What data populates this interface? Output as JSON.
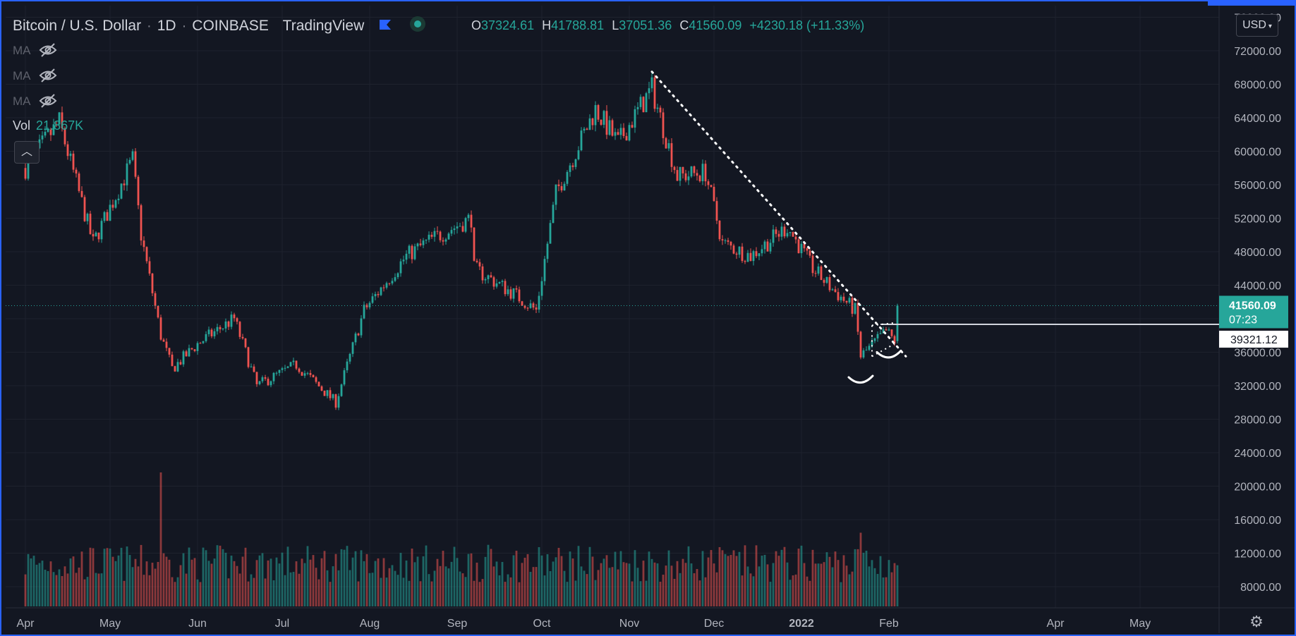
{
  "header": {
    "symbol": "Bitcoin / U.S. Dollar",
    "interval": "1D",
    "exchange": "COINBASE",
    "source": "TradingView",
    "ohlc": {
      "open_label": "O",
      "open": "37324.61",
      "high_label": "H",
      "high": "41788.81",
      "low_label": "L",
      "low": "37051.36",
      "close_label": "C",
      "close": "41560.09",
      "change": "+4230.18 (+11.33%)"
    }
  },
  "indicators": {
    "ma_labels": [
      "MA",
      "MA",
      "MA"
    ],
    "vol_label": "Vol",
    "vol_value": "21.867K"
  },
  "controls": {
    "currency": "USD",
    "collapse_icon": "chevron-up-icon",
    "settings_icon": "gear-icon"
  },
  "colors": {
    "up": "#26a69a",
    "down": "#ef5350",
    "background": "#131722",
    "grid": "#1e222d",
    "frame": "#2962ff"
  },
  "price_tags": {
    "last_price": "41560.09",
    "countdown": "07:23",
    "level_price": "39321.12"
  },
  "chart_data": {
    "type": "candlestick",
    "y_axis": {
      "range": [
        6000,
        76000
      ],
      "ticks": [
        8000,
        12000,
        16000,
        20000,
        24000,
        28000,
        32000,
        36000,
        40000,
        44000,
        48000,
        52000,
        56000,
        60000,
        64000,
        68000,
        72000
      ],
      "tick_labels": [
        "8000.00",
        "12000.00",
        "16000.00",
        "20000.00",
        "24000.00",
        "28000.00",
        "32000.00",
        "36000.00",
        "40000.00",
        "44000.00",
        "48000.00",
        "52000.00",
        "56000.00",
        "60000.00",
        "64000.00",
        "68000.00",
        "72000.00"
      ],
      "top_partial_label": "76000.00"
    },
    "x_axis": {
      "labels": [
        "Apr",
        "May",
        "Jun",
        "Jul",
        "Aug",
        "Sep",
        "Oct",
        "Nov",
        "Dec",
        "2022",
        "Feb",
        "Apr",
        "May"
      ]
    },
    "price_path": [
      {
        "date": "2021-04-01",
        "close": 58000
      },
      {
        "date": "2021-04-13",
        "close": 63500
      },
      {
        "date": "2021-04-25",
        "close": 49000
      },
      {
        "date": "2021-05-09",
        "close": 59000
      },
      {
        "date": "2021-05-12",
        "close": 50000
      },
      {
        "date": "2021-05-19",
        "close": 38000
      },
      {
        "date": "2021-05-23",
        "close": 34000
      },
      {
        "date": "2021-06-01",
        "close": 37000
      },
      {
        "date": "2021-06-14",
        "close": 40000
      },
      {
        "date": "2021-06-22",
        "close": 32000
      },
      {
        "date": "2021-07-06",
        "close": 34500
      },
      {
        "date": "2021-07-20",
        "close": 30000
      },
      {
        "date": "2021-07-30",
        "close": 41000
      },
      {
        "date": "2021-08-14",
        "close": 47500
      },
      {
        "date": "2021-08-23",
        "close": 49500
      },
      {
        "date": "2021-09-06",
        "close": 52000
      },
      {
        "date": "2021-09-07",
        "close": 46000
      },
      {
        "date": "2021-09-21",
        "close": 43000
      },
      {
        "date": "2021-09-29",
        "close": 41000
      },
      {
        "date": "2021-10-06",
        "close": 55000
      },
      {
        "date": "2021-10-20",
        "close": 65000
      },
      {
        "date": "2021-10-28",
        "close": 61000
      },
      {
        "date": "2021-11-09",
        "close": 67500
      },
      {
        "date": "2021-11-18",
        "close": 57000
      },
      {
        "date": "2021-11-28",
        "close": 57500
      },
      {
        "date": "2021-12-04",
        "close": 49000
      },
      {
        "date": "2021-12-14",
        "close": 47500
      },
      {
        "date": "2021-12-27",
        "close": 51000
      },
      {
        "date": "2022-01-05",
        "close": 46000
      },
      {
        "date": "2022-01-12",
        "close": 43500
      },
      {
        "date": "2022-01-20",
        "close": 41000
      },
      {
        "date": "2022-01-22",
        "close": 35500
      },
      {
        "date": "2022-01-31",
        "close": 38500
      },
      {
        "date": "2022-02-03",
        "close": 37300
      },
      {
        "date": "2022-02-04",
        "close": 41560
      }
    ],
    "notable_volume_spikes": [
      {
        "date": "2021-05-19",
        "relative": 1.0
      },
      {
        "date": "2022-01-22",
        "relative": 0.55
      }
    ],
    "annotations": [
      {
        "type": "dotted-trendline",
        "from": {
          "date": "2021-11-09",
          "price": 69500
        },
        "to": {
          "date": "2022-02-07",
          "price": 35500
        }
      },
      {
        "type": "horizontal-line",
        "price": 39321.12,
        "from_date": "2022-01-29"
      },
      {
        "type": "dotted-channel",
        "lower": {
          "from": {
            "date": "2022-01-26",
            "price": 35500
          },
          "to": {
            "date": "2022-02-03",
            "price": 37000
          }
        },
        "upper": {
          "from": {
            "date": "2022-01-26",
            "price": 39200
          },
          "to": {
            "date": "2022-02-03",
            "price": 39500
          }
        }
      },
      {
        "type": "freehand-arc",
        "date": "2022-01-22",
        "price": 32500
      },
      {
        "type": "freehand-arc",
        "date": "2022-02-01",
        "price": 35500
      }
    ],
    "last_price_line": 41560.09,
    "grid": true
  }
}
